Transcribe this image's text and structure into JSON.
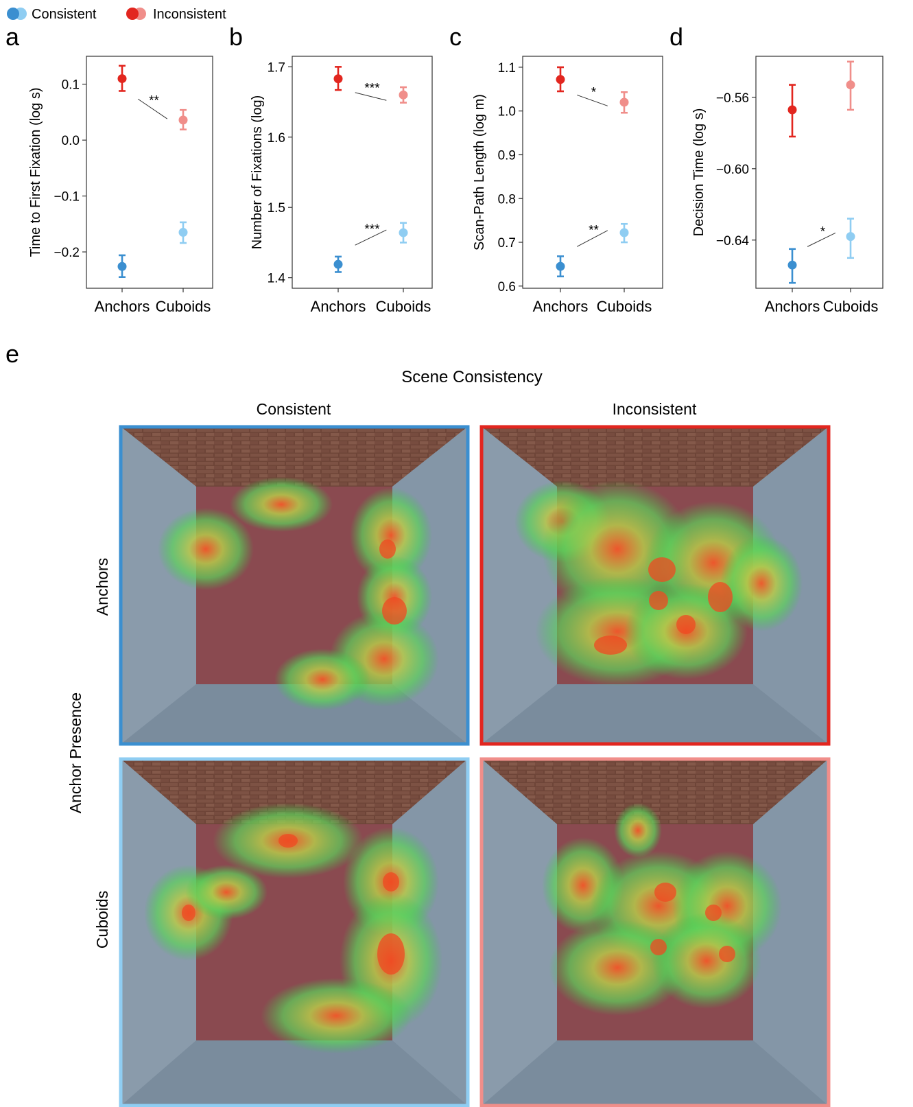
{
  "legend": {
    "items": [
      {
        "label": "Consistent",
        "colors": [
          "#3b8fd0",
          "#8fcdf2"
        ]
      },
      {
        "label": "Inconsistent",
        "colors": [
          "#e2261f",
          "#f08e8a"
        ]
      }
    ]
  },
  "colors": {
    "anchors_consistent": "#3b8fd0",
    "cuboids_consistent": "#8fcdf2",
    "anchors_inconsistent": "#e2261f",
    "cuboids_inconsistent": "#f08e8a"
  },
  "chart_data": [
    {
      "panel": "a",
      "type": "scatter",
      "ylabel": "Time to First Fixation (log s)",
      "categories": [
        "Anchors",
        "Cuboids"
      ],
      "yticks": [
        0.1,
        0.0,
        -0.1,
        -0.2
      ],
      "ytick_labels": [
        "0.1",
        "0.0",
        "−0.1",
        "−0.2"
      ],
      "ylim": [
        -0.265,
        0.15
      ],
      "series": [
        {
          "name": "Inconsistent",
          "values": [
            0.11,
            0.036
          ],
          "lower": [
            0.088,
            0.019
          ],
          "upper": [
            0.133,
            0.054
          ]
        },
        {
          "name": "Consistent",
          "values": [
            -0.226,
            -0.165
          ],
          "lower": [
            -0.245,
            -0.184
          ],
          "upper": [
            -0.206,
            -0.147
          ]
        }
      ],
      "annotations": [
        {
          "text": "**",
          "between": "Inconsistent"
        }
      ]
    },
    {
      "panel": "b",
      "type": "scatter",
      "ylabel": "Number of Fixations (log)",
      "categories": [
        "Anchors",
        "Cuboids"
      ],
      "yticks": [
        1.7,
        1.6,
        1.5,
        1.4
      ],
      "ytick_labels": [
        "1.7",
        "1.6",
        "1.5",
        "1.4"
      ],
      "ylim": [
        1.385,
        1.715
      ],
      "series": [
        {
          "name": "Inconsistent",
          "values": [
            1.683,
            1.66
          ],
          "lower": [
            1.667,
            1.649
          ],
          "upper": [
            1.7,
            1.671
          ]
        },
        {
          "name": "Consistent",
          "values": [
            1.419,
            1.464
          ],
          "lower": [
            1.408,
            1.45
          ],
          "upper": [
            1.43,
            1.478
          ]
        }
      ],
      "annotations": [
        {
          "text": "***",
          "between": "Inconsistent"
        },
        {
          "text": "***",
          "between": "Consistent"
        }
      ]
    },
    {
      "panel": "c",
      "type": "scatter",
      "ylabel": "Scan-Path Length (log m)",
      "categories": [
        "Anchors",
        "Cuboids"
      ],
      "yticks": [
        1.1,
        1.0,
        0.9,
        0.8,
        0.7,
        0.6
      ],
      "ytick_labels": [
        "1.1",
        "1.0",
        "0.9",
        "0.8",
        "0.7",
        "0.6"
      ],
      "ylim": [
        0.595,
        1.125
      ],
      "series": [
        {
          "name": "Inconsistent",
          "values": [
            1.072,
            1.02
          ],
          "lower": [
            1.045,
            0.996
          ],
          "upper": [
            1.1,
            1.043
          ]
        },
        {
          "name": "Consistent",
          "values": [
            0.645,
            0.722
          ],
          "lower": [
            0.622,
            0.7
          ],
          "upper": [
            0.668,
            0.742
          ]
        }
      ],
      "annotations": [
        {
          "text": "*",
          "between": "Inconsistent"
        },
        {
          "text": "**",
          "between": "Consistent"
        }
      ]
    },
    {
      "panel": "d",
      "type": "scatter",
      "ylabel": "Decision Time (log s)",
      "categories": [
        "Anchors",
        "Cuboids"
      ],
      "yticks": [
        -0.56,
        -0.6,
        -0.64
      ],
      "ytick_labels": [
        "−0.56",
        "−0.60",
        "−0.64"
      ],
      "ylim": [
        -0.667,
        -0.537
      ],
      "series": [
        {
          "name": "Inconsistent",
          "values": [
            -0.567,
            -0.553
          ],
          "lower": [
            -0.582,
            -0.567
          ],
          "upper": [
            -0.553,
            -0.54
          ]
        },
        {
          "name": "Consistent",
          "values": [
            -0.654,
            -0.638
          ],
          "lower": [
            -0.664,
            -0.65
          ],
          "upper": [
            -0.645,
            -0.628
          ]
        }
      ],
      "annotations": [
        {
          "text": "*",
          "between": "Consistent"
        }
      ]
    }
  ],
  "panel_e": {
    "letter": "e",
    "title": "Scene Consistency",
    "columns": [
      "Consistent",
      "Inconsistent"
    ],
    "row_axis_label": "Anchor Presence",
    "rows": [
      "Anchors",
      "Cuboids"
    ]
  }
}
